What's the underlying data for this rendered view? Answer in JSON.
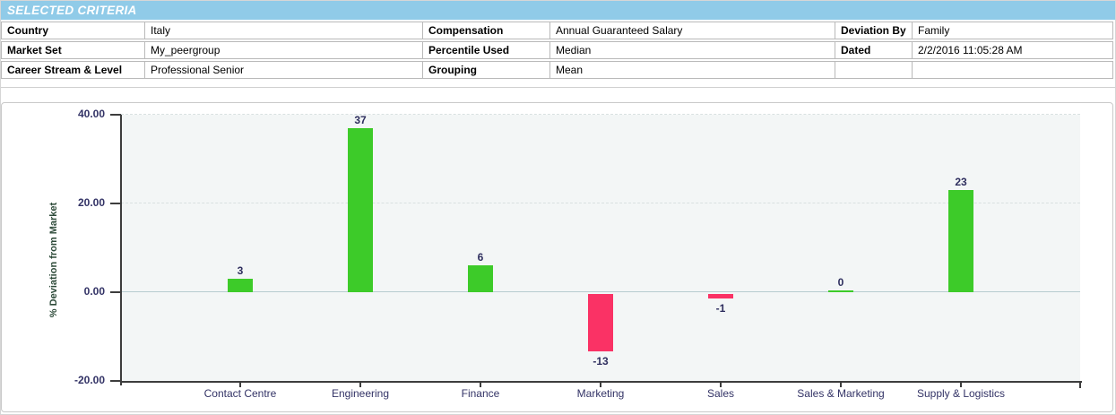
{
  "criteria": {
    "title": "SELECTED CRITERIA",
    "header_bg": "#90cbe8",
    "rows": [
      [
        {
          "label": "Country",
          "value": "Italy"
        },
        {
          "label": "Compensation",
          "value": "Annual Guaranteed Salary"
        },
        {
          "label": "Deviation By",
          "value": "Family"
        }
      ],
      [
        {
          "label": "Market Set",
          "value": "My_peergroup"
        },
        {
          "label": "Percentile Used",
          "value": "Median"
        },
        {
          "label": "Dated",
          "value": "2/2/2016 11:05:28 AM"
        }
      ],
      [
        {
          "label": "Career Stream & Level",
          "value": "Professional Senior"
        },
        {
          "label": "Grouping",
          "value": "Mean"
        },
        {
          "label": "",
          "value": ""
        }
      ]
    ]
  },
  "chart_data": {
    "type": "bar",
    "categories": [
      "Contact Centre",
      "Engineering",
      "Finance",
      "Marketing",
      "Sales",
      "Sales & Marketing",
      "Supply & Logistics"
    ],
    "values": [
      3,
      37,
      6,
      -13,
      -1,
      0,
      23
    ],
    "ylabel": "% Deviation from Market",
    "ylim": [
      -20,
      40
    ],
    "yticks": [
      "40.00",
      "20.00",
      "0.00",
      "-20.00"
    ],
    "ytick_values": [
      40,
      20,
      0,
      -20
    ],
    "positive_color": "#3dcb29",
    "negative_color": "#fa3265",
    "grid": true,
    "legend_position": "none"
  }
}
